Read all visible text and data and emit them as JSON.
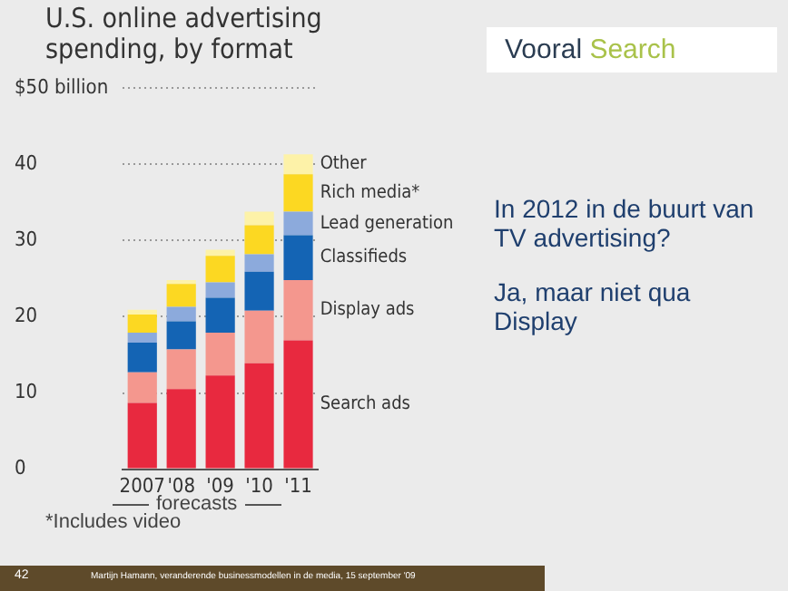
{
  "chart_data": {
    "type": "bar",
    "title": "U.S. online advertising spending, by format",
    "stacked": true,
    "categories": [
      "2007",
      "'08",
      "'09",
      "'10",
      "'11"
    ],
    "series": [
      {
        "name": "Search ads",
        "color": "#e8293f",
        "values": [
          8.7,
          10.5,
          12.3,
          13.9,
          16.9
        ]
      },
      {
        "name": "Display ads",
        "color": "#f4978e",
        "values": [
          4.0,
          5.2,
          5.6,
          6.9,
          7.9
        ]
      },
      {
        "name": "Classifieds",
        "color": "#1464b4",
        "values": [
          3.9,
          3.7,
          4.6,
          5.1,
          5.9
        ]
      },
      {
        "name": "Lead generation",
        "color": "#8caadc",
        "values": [
          1.3,
          1.9,
          2.0,
          2.3,
          3.1
        ]
      },
      {
        "name": "Rich media*",
        "color": "#fcd822",
        "values": [
          2.4,
          3.0,
          3.5,
          3.8,
          4.9
        ]
      },
      {
        "name": "Other",
        "color": "#fdf2a8",
        "values": [
          0.6,
          0.5,
          0.8,
          1.8,
          2.6
        ]
      }
    ],
    "ylim": [
      0,
      50
    ],
    "yticks": [
      0,
      10,
      20,
      30,
      40,
      {
        "value": 50,
        "label": "$50 billion"
      }
    ],
    "grid": "y",
    "legend": "right",
    "annotations": [
      "forecasts",
      "*Includes video",
      "Vooral Search",
      "In 2012 in de buurt van TV advertising?",
      "Ja, maar niet qua Display",
      "42",
      "Martijn Hamann, veranderende businessmodellen in de media, 15 september '09"
    ]
  }
}
